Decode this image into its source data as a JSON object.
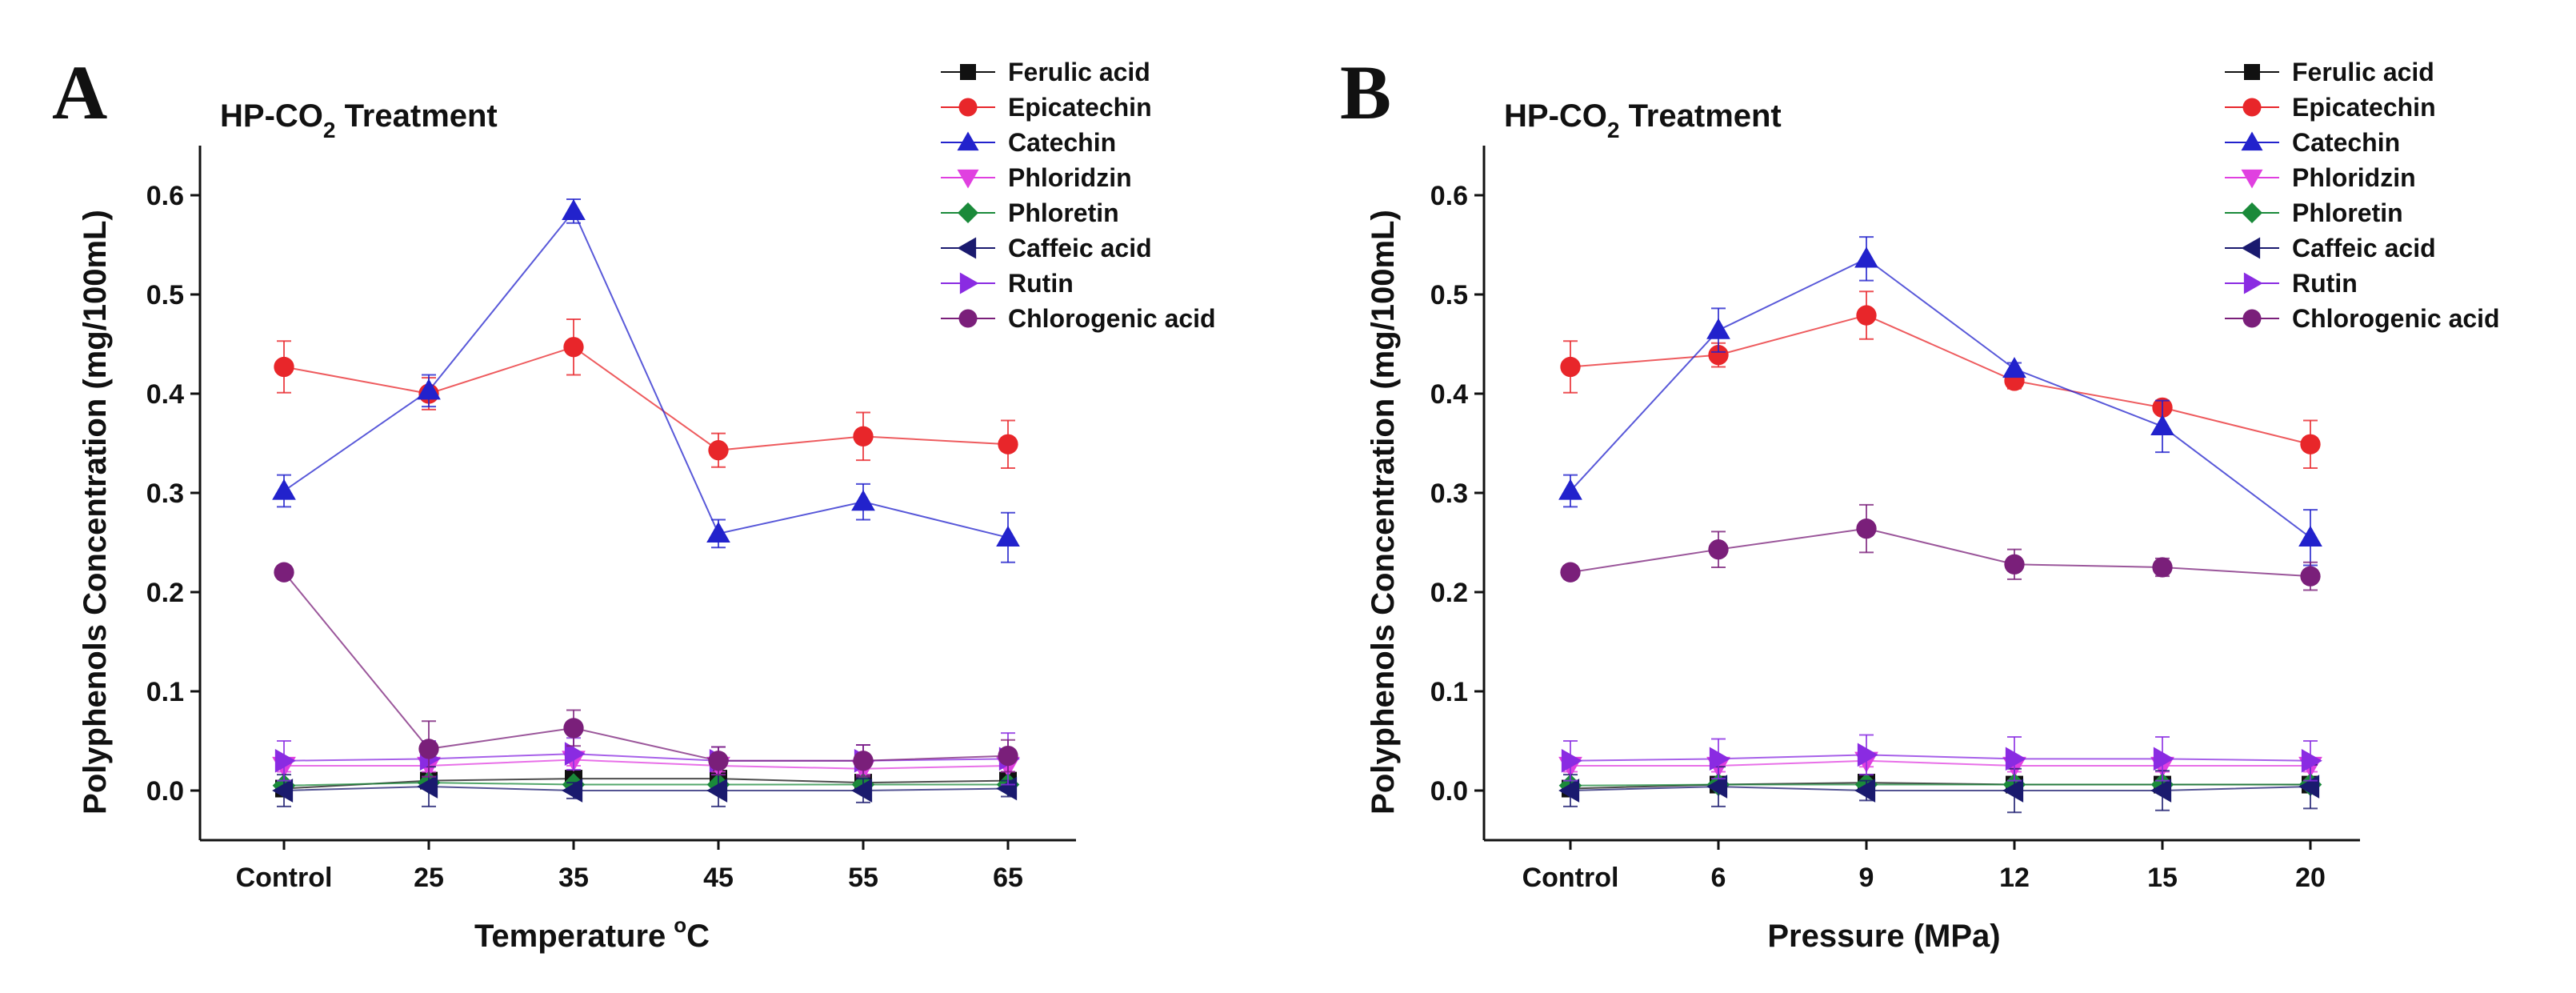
{
  "figure": {
    "ylabel": "Polyphenols Concentration (mg/100mL)"
  },
  "chart_data": [
    {
      "type": "line",
      "panel": "A",
      "title": "HP-CO",
      "title_subscript": "2",
      "title_suffix": " Treatment",
      "xlabel": "Temperature",
      "xlabel_unit": "o",
      "xlabel_suffix": "C",
      "ylabel": "Polyphenols Concentration (mg/100mL)",
      "categories": [
        "Control",
        "25",
        "35",
        "45",
        "55",
        "65"
      ],
      "ylim": [
        -0.05,
        0.65
      ],
      "yticks": [
        "0.0",
        "0.1",
        "0.2",
        "0.3",
        "0.4",
        "0.5",
        "0.6"
      ],
      "legend_position": "top-right",
      "series": [
        {
          "name": "Ferulic acid",
          "color": "#111111",
          "marker": "square",
          "values": [
            0.002,
            0.01,
            0.012,
            0.012,
            0.008,
            0.01
          ],
          "errors": [
            0.006,
            0.006,
            0.005,
            0.006,
            0.005,
            0.005
          ]
        },
        {
          "name": "Epicatechin",
          "color": "#e8262a",
          "marker": "circle",
          "values": [
            0.427,
            0.4,
            0.447,
            0.343,
            0.357,
            0.349
          ],
          "errors": [
            0.026,
            0.016,
            0.028,
            0.017,
            0.024,
            0.024
          ]
        },
        {
          "name": "Catechin",
          "color": "#2222cc",
          "marker": "triangle-up",
          "values": [
            0.302,
            0.403,
            0.584,
            0.259,
            0.291,
            0.255
          ],
          "errors": [
            0.016,
            0.016,
            0.012,
            0.014,
            0.018,
            0.025
          ]
        },
        {
          "name": "Phloridzin",
          "color": "#e040e0",
          "marker": "triangle-down",
          "values": [
            0.025,
            0.025,
            0.031,
            0.025,
            0.022,
            0.025
          ],
          "errors": [
            0.006,
            0.006,
            0.006,
            0.006,
            0.006,
            0.006
          ]
        },
        {
          "name": "Phloretin",
          "color": "#1a8a3a",
          "marker": "diamond",
          "values": [
            0.005,
            0.008,
            0.006,
            0.006,
            0.006,
            0.006
          ],
          "errors": [
            0.004,
            0.004,
            0.004,
            0.004,
            0.004,
            0.004
          ]
        },
        {
          "name": "Caffeic acid",
          "color": "#1a1a6e",
          "marker": "triangle-left",
          "values": [
            0.0,
            0.004,
            0.0,
            0.0,
            0.0,
            0.002
          ],
          "errors": [
            0.016,
            0.02,
            0.008,
            0.016,
            0.012,
            0.008
          ]
        },
        {
          "name": "Rutin",
          "color": "#8a2be2",
          "marker": "triangle-right",
          "values": [
            0.03,
            0.032,
            0.037,
            0.03,
            0.03,
            0.032
          ],
          "errors": [
            0.02,
            0.018,
            0.016,
            0.014,
            0.016,
            0.026
          ]
        },
        {
          "name": "Chlorogenic acid",
          "color": "#7a1f7a",
          "marker": "circle",
          "values": [
            0.22,
            0.042,
            0.063,
            0.03,
            0.03,
            0.035
          ],
          "errors": [
            0.004,
            0.028,
            0.018,
            0.014,
            0.016,
            0.016
          ]
        }
      ]
    },
    {
      "type": "line",
      "panel": "B",
      "title": "HP-CO",
      "title_subscript": "2",
      "title_suffix": " Treatment",
      "xlabel": "Pressure (MPa)",
      "xlabel_unit": "",
      "xlabel_suffix": "",
      "ylabel": "Polyphenols Concentration (mg/100mL)",
      "categories": [
        "Control",
        "6",
        "9",
        "12",
        "15",
        "20"
      ],
      "ylim": [
        -0.05,
        0.65
      ],
      "yticks": [
        "0.0",
        "0.1",
        "0.2",
        "0.3",
        "0.4",
        "0.5",
        "0.6"
      ],
      "legend_position": "top-right",
      "series": [
        {
          "name": "Ferulic acid",
          "color": "#111111",
          "marker": "square",
          "values": [
            0.002,
            0.006,
            0.008,
            0.006,
            0.006,
            0.006
          ],
          "errors": [
            0.006,
            0.006,
            0.006,
            0.006,
            0.006,
            0.006
          ]
        },
        {
          "name": "Epicatechin",
          "color": "#e8262a",
          "marker": "circle",
          "values": [
            0.427,
            0.439,
            0.479,
            0.413,
            0.386,
            0.349
          ],
          "errors": [
            0.026,
            0.012,
            0.024,
            0.008,
            0.006,
            0.024
          ]
        },
        {
          "name": "Catechin",
          "color": "#2222cc",
          "marker": "triangle-up",
          "values": [
            0.302,
            0.464,
            0.536,
            0.425,
            0.367,
            0.255
          ],
          "errors": [
            0.016,
            0.022,
            0.022,
            0.006,
            0.026,
            0.028
          ]
        },
        {
          "name": "Phloridzin",
          "color": "#e040e0",
          "marker": "triangle-down",
          "values": [
            0.025,
            0.025,
            0.03,
            0.025,
            0.025,
            0.025
          ],
          "errors": [
            0.006,
            0.006,
            0.006,
            0.006,
            0.006,
            0.006
          ]
        },
        {
          "name": "Phloretin",
          "color": "#1a8a3a",
          "marker": "diamond",
          "values": [
            0.005,
            0.006,
            0.006,
            0.006,
            0.006,
            0.006
          ],
          "errors": [
            0.004,
            0.004,
            0.004,
            0.004,
            0.004,
            0.004
          ]
        },
        {
          "name": "Caffeic acid",
          "color": "#1a1a6e",
          "marker": "triangle-left",
          "values": [
            0.0,
            0.004,
            0.0,
            0.0,
            0.0,
            0.004
          ],
          "errors": [
            0.016,
            0.02,
            0.01,
            0.022,
            0.02,
            0.022
          ]
        },
        {
          "name": "Rutin",
          "color": "#8a2be2",
          "marker": "triangle-right",
          "values": [
            0.03,
            0.032,
            0.036,
            0.032,
            0.032,
            0.03
          ],
          "errors": [
            0.02,
            0.02,
            0.02,
            0.022,
            0.022,
            0.02
          ]
        },
        {
          "name": "Chlorogenic acid",
          "color": "#7a1f7a",
          "marker": "circle",
          "values": [
            0.22,
            0.243,
            0.264,
            0.228,
            0.225,
            0.216
          ],
          "errors": [
            0.006,
            0.018,
            0.024,
            0.015,
            0.009,
            0.014
          ]
        }
      ]
    }
  ]
}
